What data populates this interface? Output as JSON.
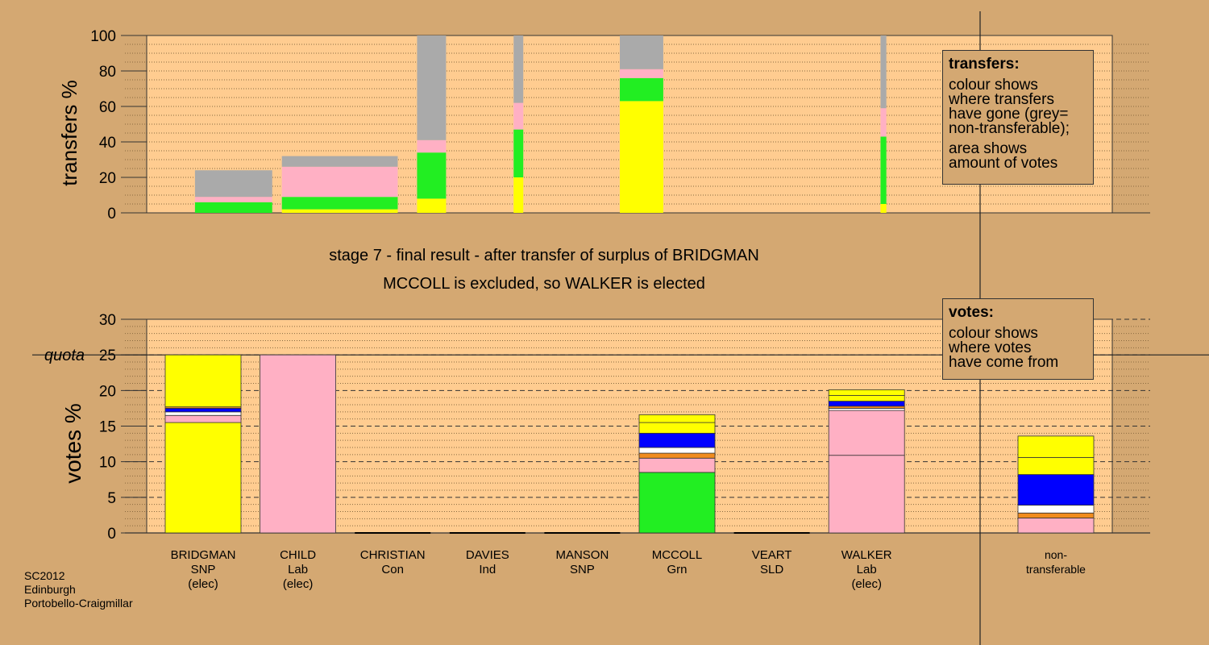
{
  "stage_title": "stage 7 - final result - after transfer of surplus of BRIDGMAN",
  "stage_subtitle": "MCCOLL is excluded, so WALKER is elected",
  "footer": [
    "SC2012",
    "Edinburgh",
    "Portobello-Craigmillar"
  ],
  "legend_transfers": {
    "title": "transfers:",
    "lines1": [
      "colour shows",
      "where transfers",
      "have gone (grey=",
      "non-transferable);"
    ],
    "lines2": [
      "area shows",
      "amount of votes"
    ]
  },
  "legend_votes": {
    "title": "votes:",
    "lines": [
      "colour shows",
      "where votes",
      "have come from"
    ]
  },
  "colors": {
    "background": "#d4a872",
    "plot_fill": "#ffcc90",
    "snp": "#ffff00",
    "lab": "#ffb0c4",
    "con": "#0000ff",
    "grn": "#22ee22",
    "other_white": "#ffffff",
    "orange": "#f08c1e",
    "nontransferable": "#aaaaaa"
  },
  "chart_data": [
    {
      "type": "bar",
      "subtype": "variable-width-stacked",
      "ylabel": "transfers %",
      "ylim": [
        0,
        100
      ],
      "yticks": [
        0,
        20,
        40,
        60,
        80,
        100
      ],
      "grid": "dotted",
      "bars": [
        {
          "candidate": "BRIDGMAN",
          "x_start": 0.5,
          "x_end": 1.3,
          "segments": [
            {
              "party": "grn",
              "value": 6
            },
            {
              "party": "lab",
              "value": 3
            },
            {
              "party": "nontransferable",
              "value": 15
            }
          ]
        },
        {
          "candidate": "CHILD",
          "x_start": 1.4,
          "x_end": 2.6,
          "segments": [
            {
              "party": "snp",
              "value": 2
            },
            {
              "party": "grn",
              "value": 7
            },
            {
              "party": "lab",
              "value": 17
            },
            {
              "party": "nontransferable",
              "value": 6
            }
          ]
        },
        {
          "candidate": "CHRISTIAN",
          "x_start": 2.8,
          "x_end": 3.1,
          "segments": [
            {
              "party": "snp",
              "value": 8
            },
            {
              "party": "grn",
              "value": 26
            },
            {
              "party": "lab",
              "value": 7
            },
            {
              "party": "nontransferable",
              "value": 59
            }
          ]
        },
        {
          "candidate": "DAVIES",
          "x_start": 3.8,
          "x_end": 3.9,
          "segments": [
            {
              "party": "snp",
              "value": 20
            },
            {
              "party": "grn",
              "value": 27
            },
            {
              "party": "lab",
              "value": 15
            },
            {
              "party": "nontransferable",
              "value": 38
            }
          ]
        },
        {
          "candidate": "MANSON",
          "x_start": 4.9,
          "x_end": 5.35,
          "segments": [
            {
              "party": "snp",
              "value": 63
            },
            {
              "party": "grn",
              "value": 13
            },
            {
              "party": "lab",
              "value": 5
            },
            {
              "party": "nontransferable",
              "value": 19
            }
          ]
        },
        {
          "candidate": "VEART",
          "x_start": 7.6,
          "x_end": 7.66,
          "segments": [
            {
              "party": "snp",
              "value": 5
            },
            {
              "party": "grn",
              "value": 38
            },
            {
              "party": "lab",
              "value": 16
            },
            {
              "party": "nontransferable",
              "value": 41
            }
          ]
        }
      ]
    },
    {
      "type": "bar",
      "subtype": "stacked",
      "ylabel": "votes %",
      "ylim": [
        0,
        30
      ],
      "yticks": [
        0,
        5,
        10,
        15,
        20,
        25,
        30
      ],
      "quota": 25,
      "quota_label": "quota",
      "categories": [
        {
          "name": "BRIDGMAN",
          "party": "SNP",
          "status": "(elec)"
        },
        {
          "name": "CHILD",
          "party": "Lab",
          "status": "(elec)"
        },
        {
          "name": "CHRISTIAN",
          "party": "Con",
          "status": ""
        },
        {
          "name": "DAVIES",
          "party": "Ind",
          "status": ""
        },
        {
          "name": "MANSON",
          "party": "SNP",
          "status": ""
        },
        {
          "name": "MCCOLL",
          "party": "Grn",
          "status": ""
        },
        {
          "name": "VEART",
          "party": "SLD",
          "status": ""
        },
        {
          "name": "WALKER",
          "party": "Lab",
          "status": "(elec)"
        },
        {
          "name": "non-",
          "party": "transferable",
          "status": ""
        }
      ],
      "stacks": [
        [
          {
            "party": "snp",
            "value": 15.5
          },
          {
            "party": "lab",
            "value": 1.0
          },
          {
            "party": "other_white",
            "value": 0.5
          },
          {
            "party": "con",
            "value": 0.5
          },
          {
            "party": "orange",
            "value": 0.2
          },
          {
            "party": "snp",
            "value": 7.3
          }
        ],
        [
          {
            "party": "lab",
            "value": 25.0
          }
        ],
        [],
        [],
        [],
        [
          {
            "party": "grn",
            "value": 8.5
          },
          {
            "party": "lab",
            "value": 2.0
          },
          {
            "party": "orange",
            "value": 0.7
          },
          {
            "party": "other_white",
            "value": 0.8
          },
          {
            "party": "con",
            "value": 2.0
          },
          {
            "party": "snp",
            "value": 1.5
          },
          {
            "party": "snp",
            "value": 1.1
          }
        ],
        [],
        [
          {
            "party": "lab",
            "value": 10.9
          },
          {
            "party": "lab",
            "value": 6.3
          },
          {
            "party": "other_white",
            "value": 0.3
          },
          {
            "party": "orange",
            "value": 0.3
          },
          {
            "party": "con",
            "value": 0.7
          },
          {
            "party": "snp",
            "value": 0.8
          },
          {
            "party": "snp",
            "value": 0.8
          }
        ],
        [
          {
            "party": "lab",
            "value": 2.1
          },
          {
            "party": "orange",
            "value": 0.7
          },
          {
            "party": "other_white",
            "value": 1.1
          },
          {
            "party": "con",
            "value": 4.3
          },
          {
            "party": "snp",
            "value": 2.4
          },
          {
            "party": "snp",
            "value": 3.0
          }
        ]
      ]
    }
  ]
}
